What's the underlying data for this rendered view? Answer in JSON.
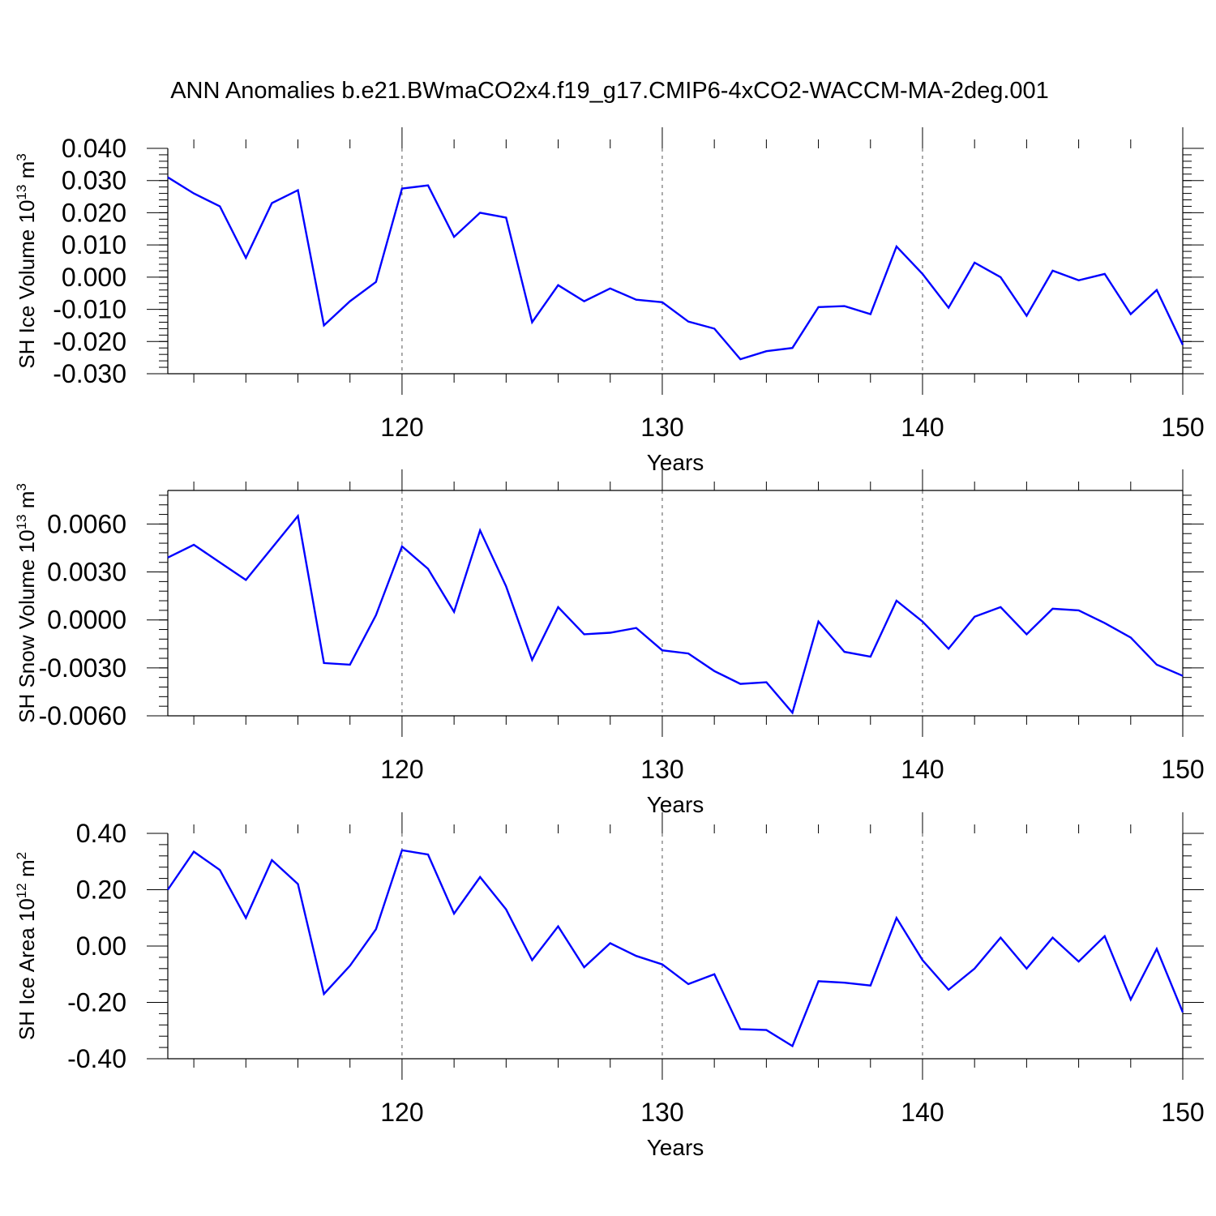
{
  "figure": {
    "title": "ANN Anomalies b.e21.BWmaCO2x4.f19_g17.CMIP6-4xCO2-WACCM-MA-2deg.001"
  },
  "chart_data": [
    {
      "type": "line",
      "ylabel": {
        "text": "SH Ice Volume 10",
        "sup": "13",
        "unit": " m",
        "unit_sup": "3"
      },
      "xlabel": "Years",
      "xlim": [
        111,
        150
      ],
      "ylim": [
        -0.03,
        0.04
      ],
      "xticks": [
        "120",
        "130",
        "140",
        "150"
      ],
      "yticks": [
        "-0.030",
        "-0.020",
        "-0.010",
        "0.000",
        "0.010",
        "0.020",
        "0.030",
        "0.040"
      ],
      "grid": "dashed vertical at major x ticks",
      "color": "#0000ff",
      "x": [
        111,
        112,
        113,
        114,
        115,
        116,
        117,
        118,
        119,
        120,
        121,
        122,
        123,
        124,
        125,
        126,
        127,
        128,
        129,
        130,
        131,
        132,
        133,
        134,
        135,
        136,
        137,
        138,
        139,
        140,
        141,
        142,
        143,
        144,
        145,
        146,
        147,
        148,
        149,
        150
      ],
      "values": [
        0.031,
        0.026,
        0.022,
        0.006,
        0.023,
        0.027,
        -0.015,
        -0.0075,
        -0.0015,
        0.0275,
        0.0285,
        0.0125,
        0.02,
        0.0185,
        -0.014,
        -0.0025,
        -0.0075,
        -0.0035,
        -0.007,
        -0.0078,
        -0.0138,
        -0.016,
        -0.0255,
        -0.023,
        -0.022,
        -0.0093,
        -0.009,
        -0.0115,
        0.0095,
        0.001,
        -0.0095,
        0.0045,
        0.0,
        -0.012,
        0.002,
        -0.001,
        0.001,
        -0.0115,
        -0.004,
        -0.021
      ]
    },
    {
      "type": "line",
      "ylabel": {
        "text": "SH Snow Volume 10",
        "sup": "13",
        "unit": " m",
        "unit_sup": "3"
      },
      "xlabel": "Years",
      "xlim": [
        111,
        150
      ],
      "ylim": [
        -0.006,
        0.0081
      ],
      "xticks": [
        "120",
        "130",
        "140",
        "150"
      ],
      "yticks": [
        "-0.0060",
        "-0.0030",
        "0.0000",
        "0.0030",
        "0.0060"
      ],
      "grid": "dashed vertical at major x ticks",
      "color": "#0000ff",
      "x": [
        111,
        112,
        113,
        114,
        115,
        116,
        117,
        118,
        119,
        120,
        121,
        122,
        123,
        124,
        125,
        126,
        127,
        128,
        129,
        130,
        131,
        132,
        133,
        134,
        135,
        136,
        137,
        138,
        139,
        140,
        141,
        142,
        143,
        144,
        145,
        146,
        147,
        148,
        149,
        150
      ],
      "values": [
        0.0039,
        0.0047,
        0.0036,
        0.0025,
        0.0045,
        0.0065,
        -0.0027,
        -0.0028,
        0.0003,
        0.0046,
        0.0032,
        0.0005,
        0.0056,
        0.0021,
        -0.0025,
        0.0008,
        -0.0009,
        -0.0008,
        -0.0005,
        -0.0019,
        -0.0021,
        -0.0032,
        -0.004,
        -0.0039,
        -0.0058,
        -0.0001,
        -0.002,
        -0.0023,
        0.0012,
        -0.0001,
        -0.0018,
        0.0002,
        0.0008,
        -0.0009,
        0.0007,
        0.0006,
        -0.0002,
        -0.0011,
        -0.0028,
        -0.0035
      ]
    },
    {
      "type": "line",
      "ylabel": {
        "text": "SH Ice Area 10",
        "sup": "12",
        "unit": " m",
        "unit_sup": "2"
      },
      "xlabel": "Years",
      "xlim": [
        111,
        150
      ],
      "ylim": [
        -0.4,
        0.4
      ],
      "xticks": [
        "120",
        "130",
        "140",
        "150"
      ],
      "yticks": [
        "-0.40",
        "-0.20",
        "0.00",
        "0.20",
        "0.40"
      ],
      "grid": "dashed vertical at major x ticks",
      "color": "#0000ff",
      "x": [
        111,
        112,
        113,
        114,
        115,
        116,
        117,
        118,
        119,
        120,
        121,
        122,
        123,
        124,
        125,
        126,
        127,
        128,
        129,
        130,
        131,
        132,
        133,
        134,
        135,
        136,
        137,
        138,
        139,
        140,
        141,
        142,
        143,
        144,
        145,
        146,
        147,
        148,
        149,
        150
      ],
      "values": [
        0.2,
        0.335,
        0.27,
        0.1,
        0.305,
        0.22,
        -0.17,
        -0.07,
        0.06,
        0.34,
        0.325,
        0.115,
        0.245,
        0.13,
        -0.05,
        0.07,
        -0.075,
        0.01,
        -0.035,
        -0.065,
        -0.135,
        -0.1,
        -0.295,
        -0.298,
        -0.355,
        -0.125,
        -0.13,
        -0.14,
        0.1,
        -0.05,
        -0.155,
        -0.08,
        0.03,
        -0.08,
        0.03,
        -0.055,
        0.035,
        -0.19,
        -0.01,
        -0.235
      ]
    }
  ]
}
